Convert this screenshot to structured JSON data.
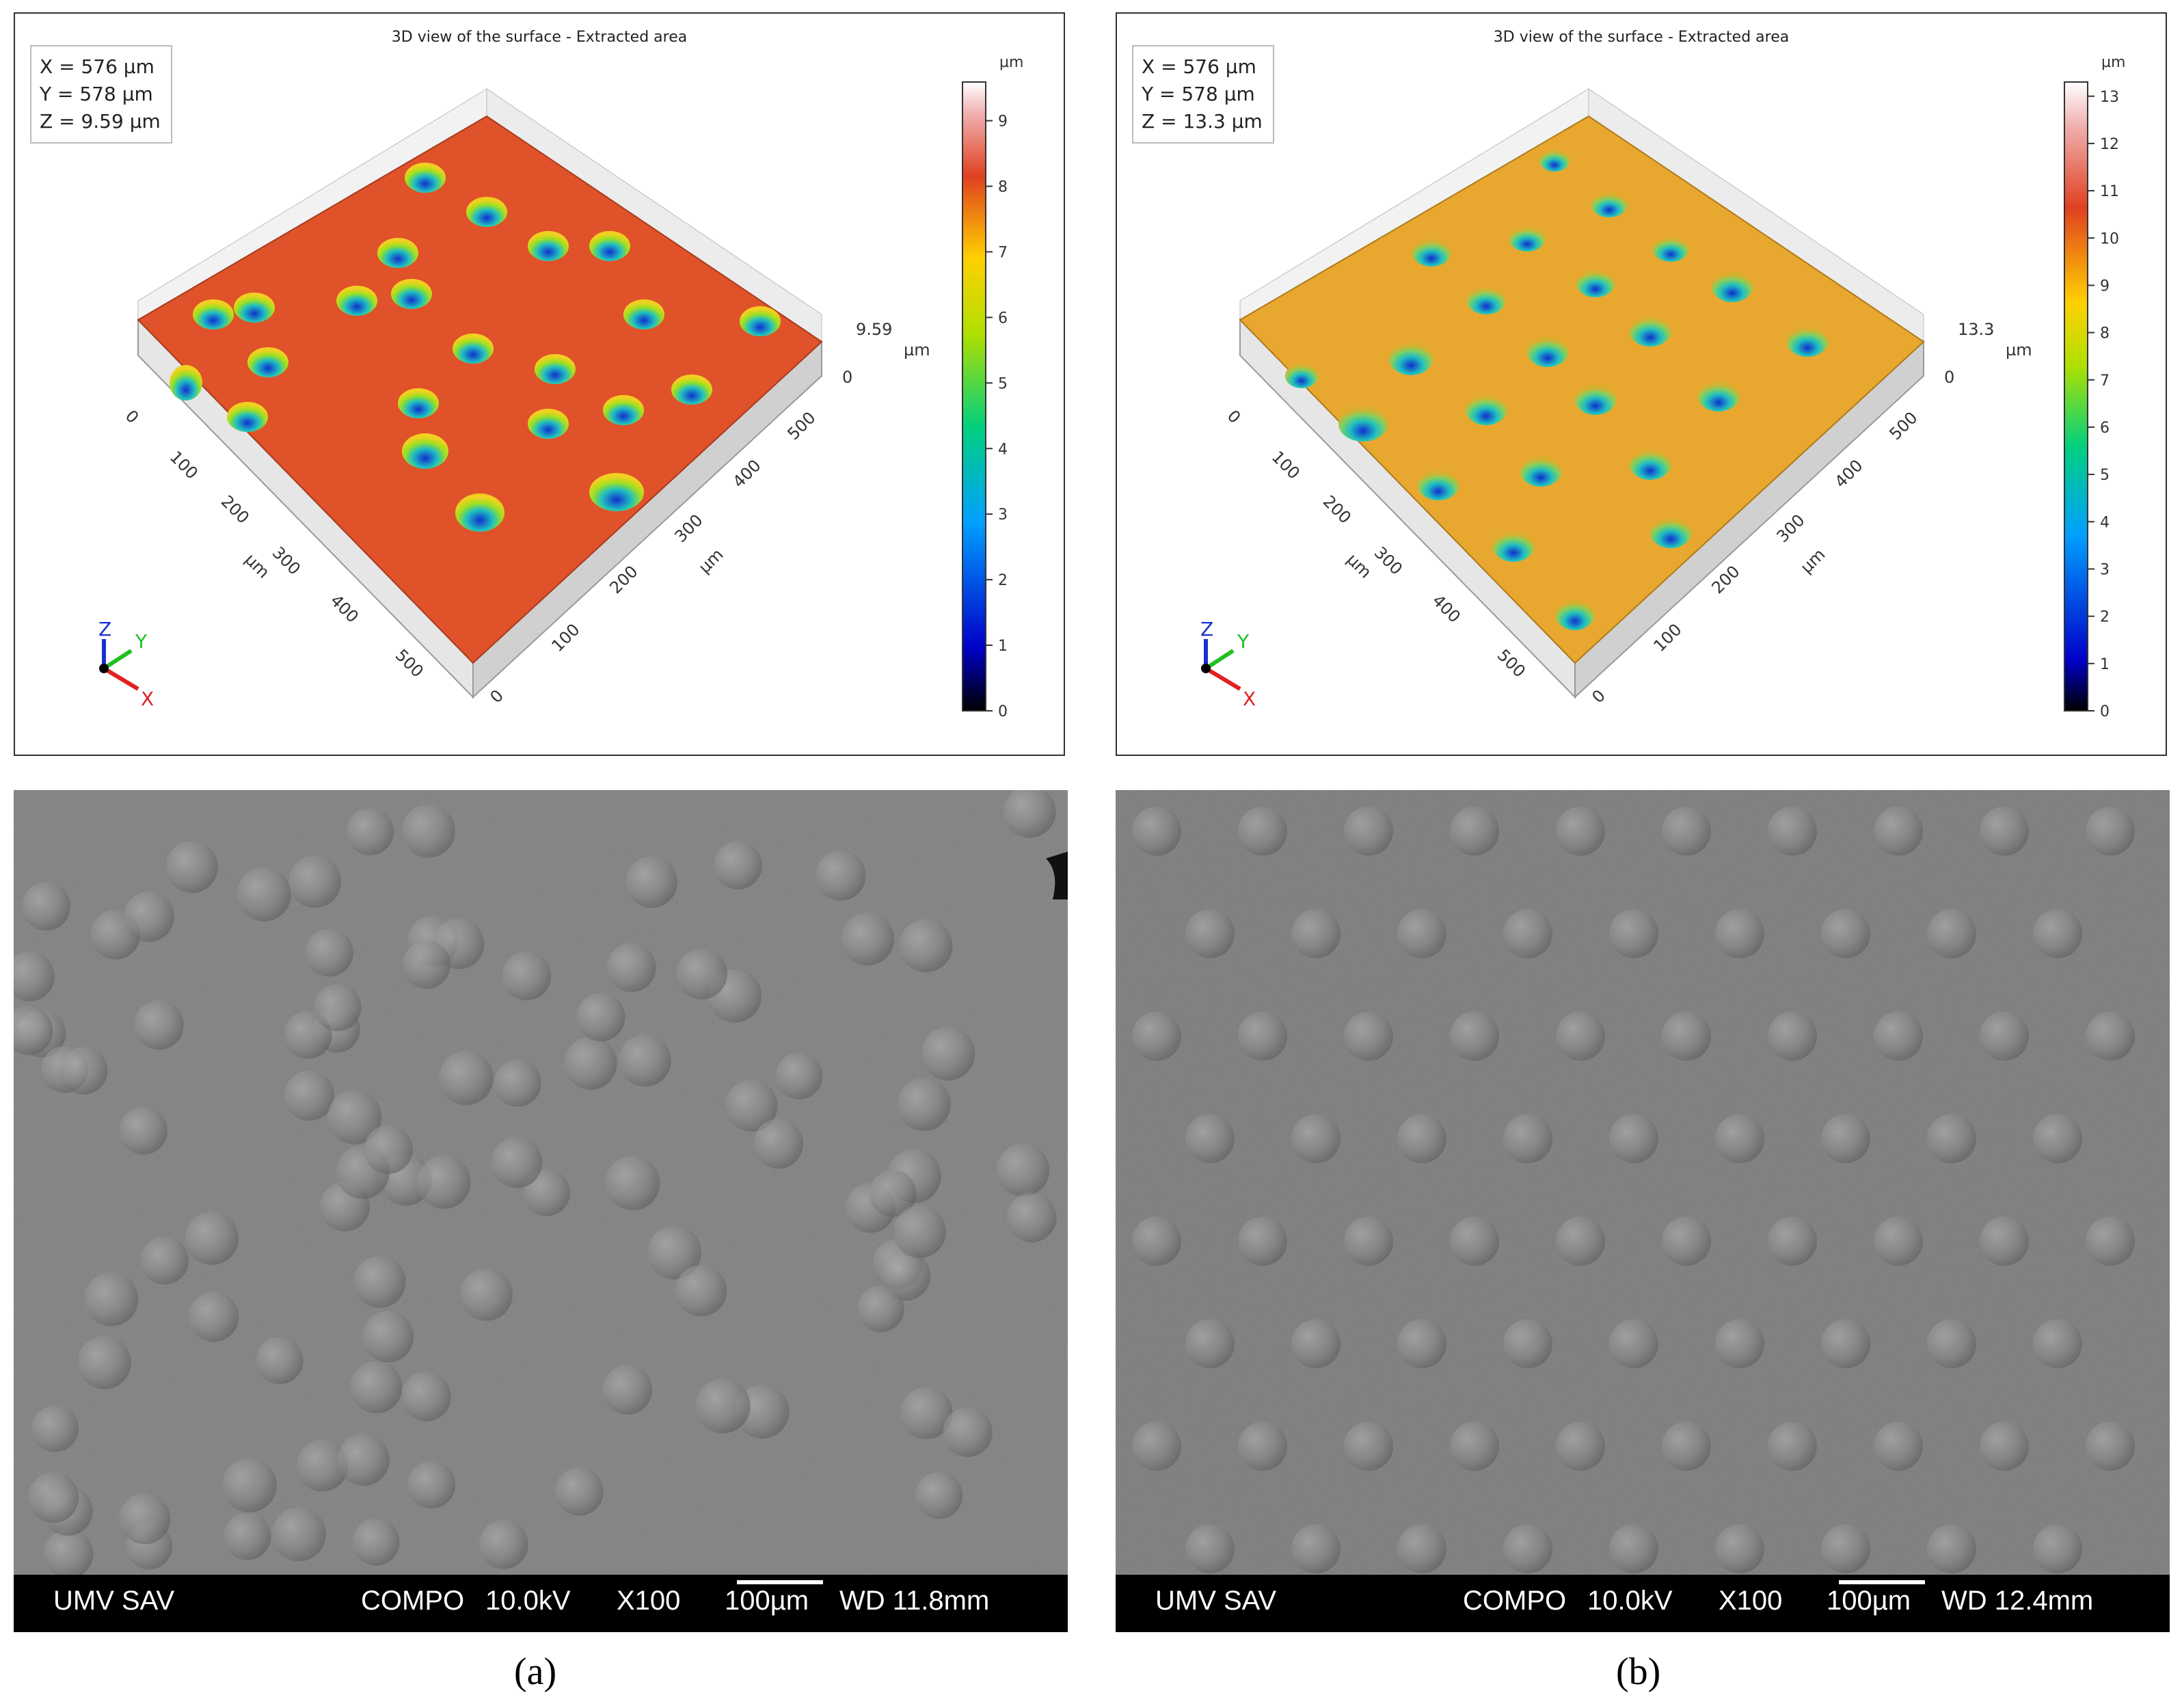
{
  "panels": [
    {
      "id": "a",
      "profilometry": {
        "title": "3D view of the surface - Extracted area",
        "readout": {
          "x": "X = 576 µm",
          "y": "Y = 578 µm",
          "z": "Z = 9.59 µm"
        },
        "height_unit": "µm",
        "height_max_label": "9.59",
        "height_min_label": "0",
        "x_ticks": [
          "0",
          "100",
          "200",
          "300",
          "400",
          "500"
        ],
        "y_ticks": [
          "0",
          "100",
          "200",
          "300",
          "400",
          "500"
        ],
        "axis_unit": "µm",
        "colorbar_ticks": [
          "0",
          "1",
          "2",
          "3",
          "4",
          "5",
          "6",
          "7",
          "8",
          "9"
        ],
        "colorbar_max": 9.59,
        "surface_color": "#e0522a",
        "orientation_labels": {
          "z": "Z",
          "y": "Y",
          "x": "X"
        }
      },
      "sem": {
        "lab": "UMV SAV",
        "mode": "COMPO",
        "voltage": "10.0kV",
        "magnification": "X100",
        "scale_label": "100µm",
        "wd": "WD 11.8mm"
      },
      "caption": "(a)"
    },
    {
      "id": "b",
      "profilometry": {
        "title": "3D view of the surface - Extracted area",
        "readout": {
          "x": "X = 576 µm",
          "y": "Y = 578 µm",
          "z": "Z = 13.3 µm"
        },
        "height_unit": "µm",
        "height_max_label": "13.3",
        "height_min_label": "0",
        "x_ticks": [
          "0",
          "100",
          "200",
          "300",
          "400",
          "500"
        ],
        "y_ticks": [
          "0",
          "100",
          "200",
          "300",
          "400",
          "500"
        ],
        "axis_unit": "µm",
        "colorbar_ticks": [
          "0",
          "1",
          "2",
          "3",
          "4",
          "5",
          "6",
          "7",
          "8",
          "9",
          "10",
          "11",
          "12",
          "13"
        ],
        "colorbar_max": 13.3,
        "surface_color": "#e8a830",
        "orientation_labels": {
          "z": "Z",
          "y": "Y",
          "x": "X"
        }
      },
      "sem": {
        "lab": "UMV SAV",
        "mode": "COMPO",
        "voltage": "10.0kV",
        "magnification": "X100",
        "scale_label": "100µm",
        "wd": "WD 12.4mm"
      },
      "caption": "(b)"
    }
  ]
}
